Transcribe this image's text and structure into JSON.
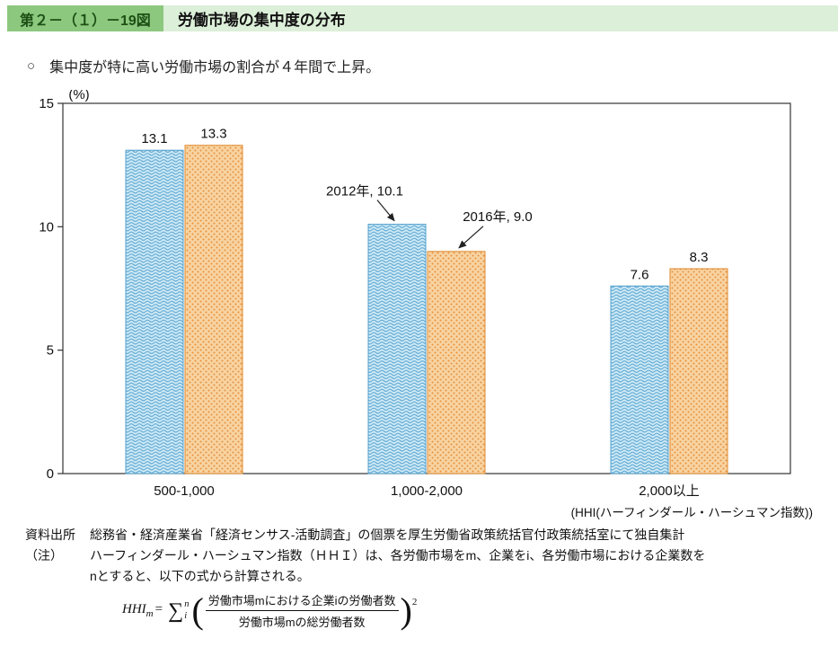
{
  "header": {
    "figure_no": "第２－（１）－19図",
    "title": "労働市場の集中度の分布"
  },
  "lead": {
    "bullet": "○",
    "text": "集中度が特に高い労働市場の割合が４年間で上昇。"
  },
  "chart_data": {
    "type": "bar",
    "title": "労働市場の集中度の分布",
    "unit_label": "(%)",
    "categories": [
      "500-1,000",
      "1,000-2,000",
      "2,000以上"
    ],
    "series": [
      {
        "name": "2012年",
        "values": [
          13.1,
          10.1,
          7.6
        ],
        "fill": "#cde9f5",
        "pattern": "wave",
        "pattern_color": "#62aad4",
        "stroke": "#55a0cc"
      },
      {
        "name": "2016年",
        "values": [
          13.3,
          9.0,
          8.3
        ],
        "fill": "#f8d3a2",
        "pattern": "dots",
        "pattern_color": "#e6913c",
        "stroke": "#df8a2e"
      }
    ],
    "ylim": [
      0,
      15
    ],
    "yticks": [
      0,
      5,
      10,
      15
    ],
    "grid": false,
    "legend_position": "none",
    "bar_value_labels": [
      {
        "category": 0,
        "series": 0,
        "text": "13.1"
      },
      {
        "category": 0,
        "series": 1,
        "text": "13.3"
      },
      {
        "category": 2,
        "series": 0,
        "text": "7.6"
      },
      {
        "category": 2,
        "series": 1,
        "text": "8.3"
      }
    ],
    "annotations": [
      {
        "text": "2012年, 10.1",
        "series": 0,
        "category": 1
      },
      {
        "text": "2016年, 9.0",
        "series": 1,
        "category": 1
      }
    ],
    "xaxis_note": "(HHI(ハーフィンダール・ハーシュマン指数))"
  },
  "notes": {
    "source_label": "資料出所",
    "source_text": "総務省・経済産業省「経済センサス-活動調査」の個票を厚生労働省政策統括官付政策統括室にて独自集計",
    "note_label": "（注）",
    "note_text": "ハーフィンダール・ハーシュマン指数（ＨＨＩ）は、各労働市場をm、企業をi、各労働市場における企業数をnとすると、以下の式から計算される。",
    "formula": {
      "lhs_main": "HHI",
      "lhs_sub": "m",
      "equals": "=",
      "sigma": "∑",
      "sigma_sup": "n",
      "sigma_sub": "i",
      "open_paren": "(",
      "numerator": "労働市場mにおける企業iの労働者数",
      "denominator": "労働市場mの総労働者数",
      "close_paren": ")",
      "exponent": "2"
    }
  },
  "colors": {
    "tag_bg": "#8cc87e",
    "tag_text": "#1d4f15",
    "title_bg": "#dcefd8",
    "axis": "#333333",
    "bar1_fill": "#cde9f5",
    "bar1_pattern": "#62aad4",
    "bar2_fill": "#f8d3a2",
    "bar2_pattern": "#e6913c"
  }
}
